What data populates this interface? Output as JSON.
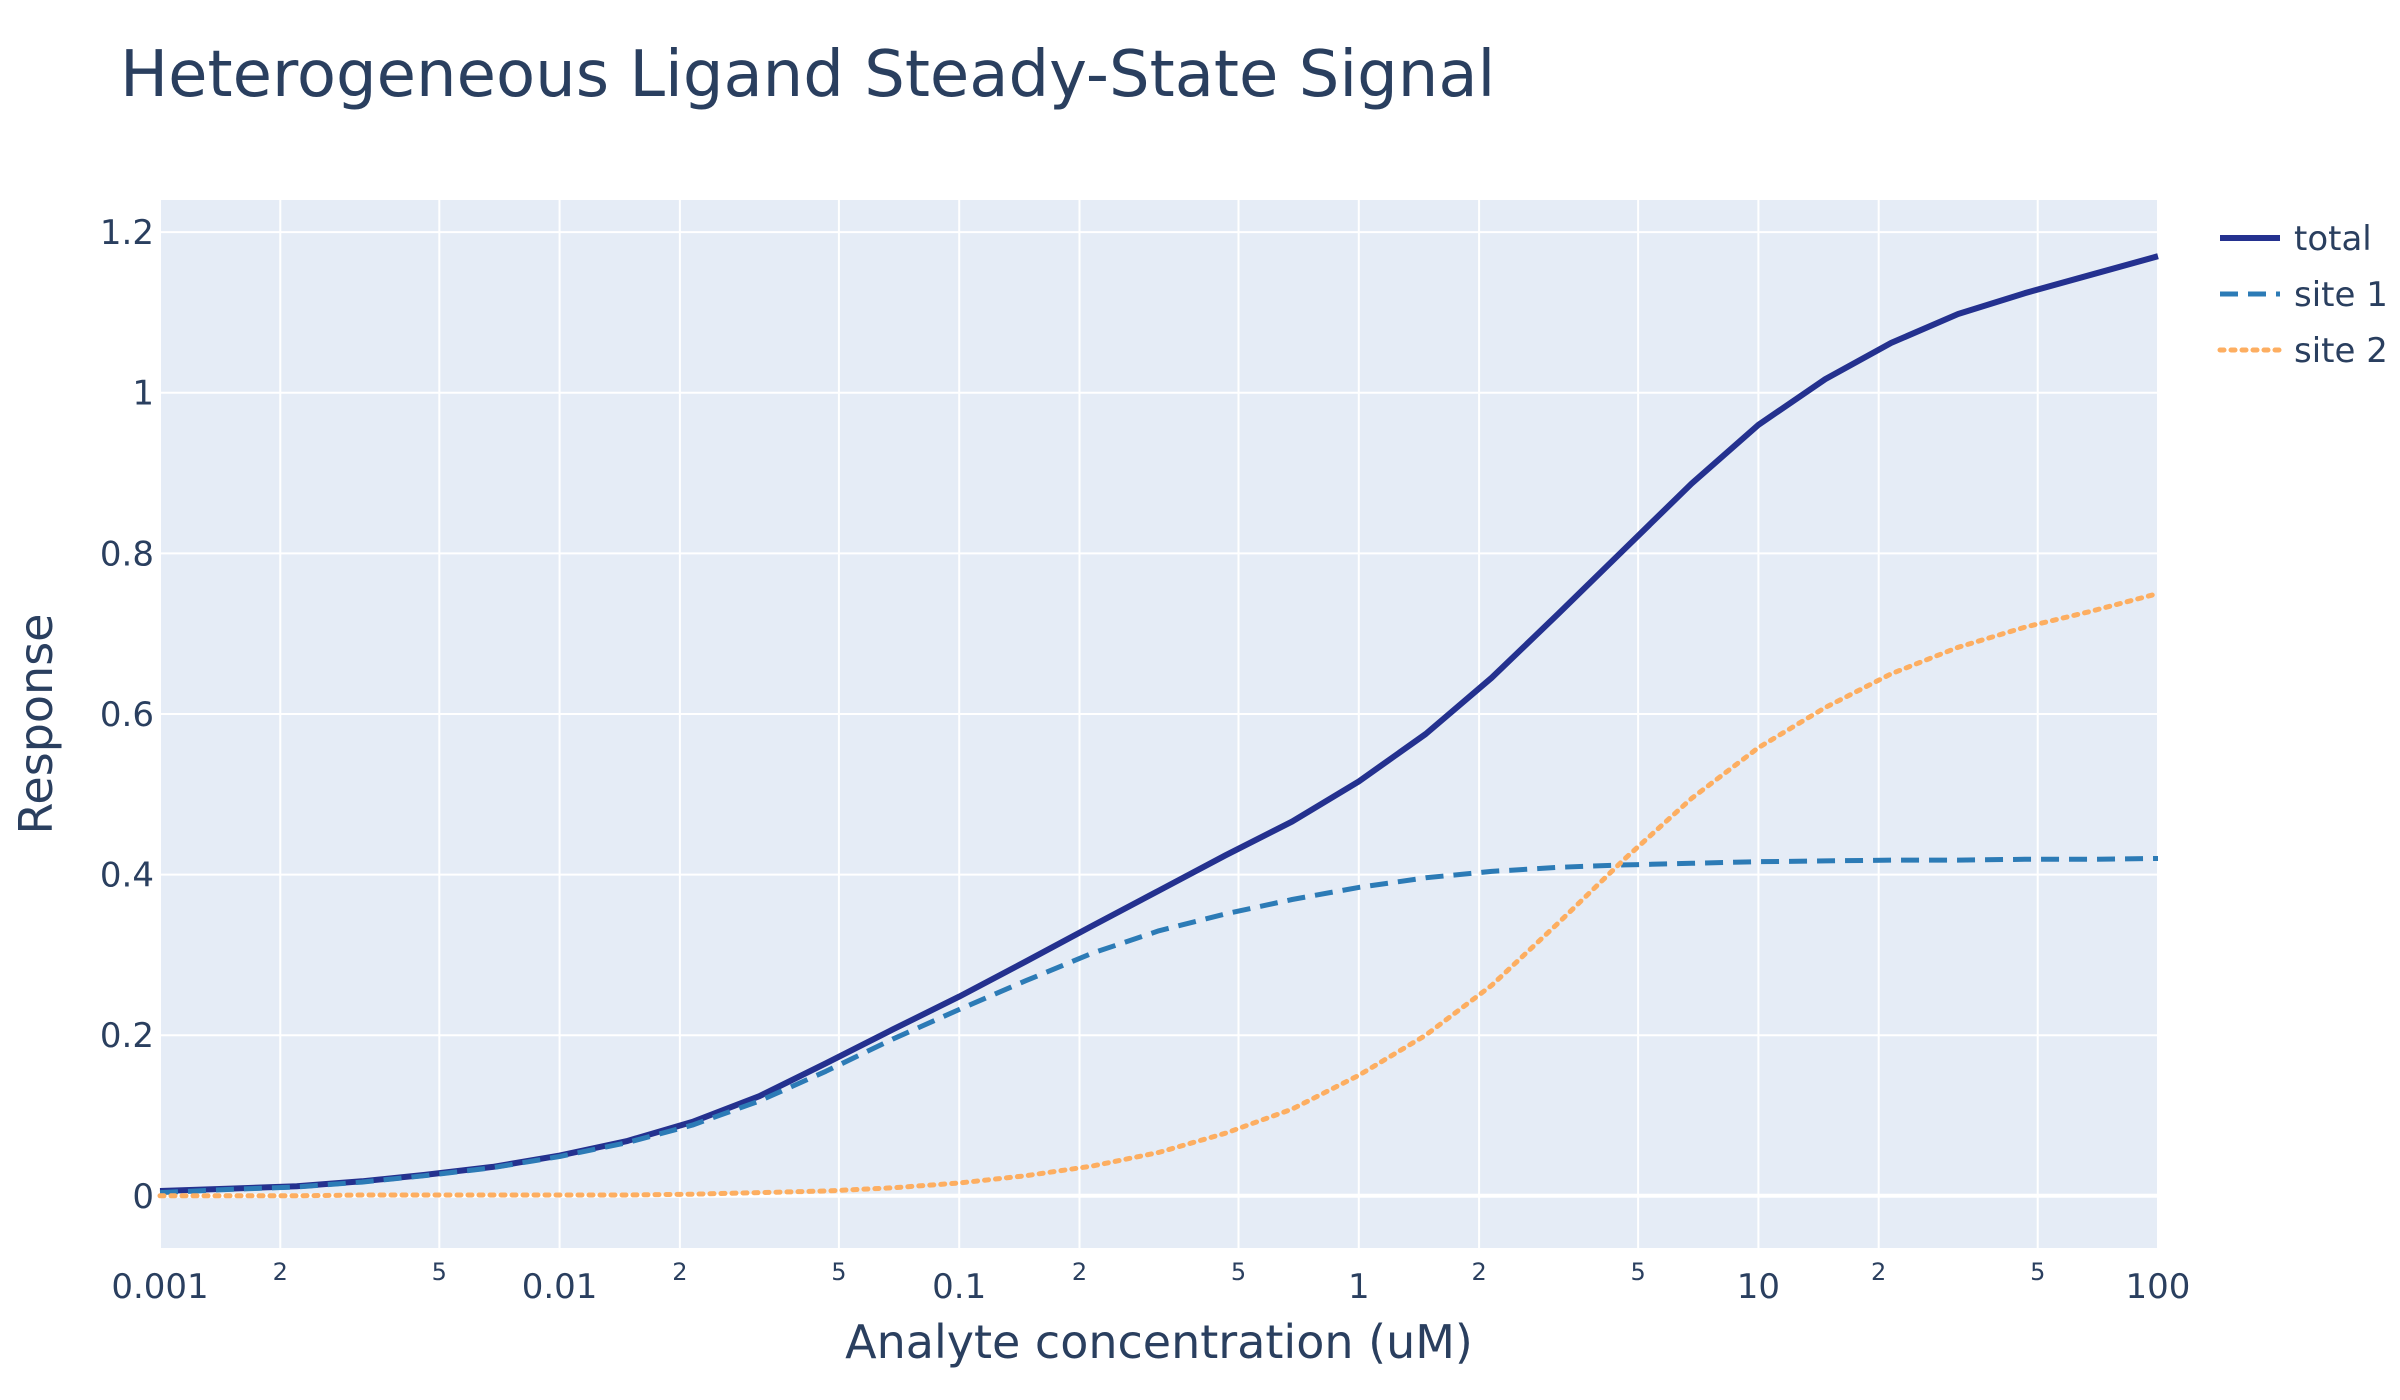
{
  "chart_data": {
    "type": "line",
    "title": "Heterogeneous Ligand Steady-State Signal",
    "xlabel": "Analyte concentration (uM)",
    "ylabel": "Response",
    "xscale": "log",
    "xlim": [
      0.001,
      100
    ],
    "ylim": [
      -0.065,
      1.24
    ],
    "grid": true,
    "legend_position": "top-right",
    "x_major_ticks": [
      {
        "value": 0.001,
        "label": "0.001"
      },
      {
        "value": 0.01,
        "label": "0.01"
      },
      {
        "value": 0.1,
        "label": "0.1"
      },
      {
        "value": 1,
        "label": "1"
      },
      {
        "value": 10,
        "label": "10"
      },
      {
        "value": 100,
        "label": "100"
      }
    ],
    "x_minor_ticks": [
      {
        "value": 0.002,
        "label": "2"
      },
      {
        "value": 0.005,
        "label": "5"
      },
      {
        "value": 0.02,
        "label": "2"
      },
      {
        "value": 0.05,
        "label": "5"
      },
      {
        "value": 0.2,
        "label": "2"
      },
      {
        "value": 0.5,
        "label": "5"
      },
      {
        "value": 2,
        "label": "2"
      },
      {
        "value": 5,
        "label": "5"
      },
      {
        "value": 20,
        "label": "2"
      },
      {
        "value": 50,
        "label": "5"
      }
    ],
    "y_ticks": [
      {
        "value": 0,
        "label": "0"
      },
      {
        "value": 0.2,
        "label": "0.2"
      },
      {
        "value": 0.4,
        "label": "0.4"
      },
      {
        "value": 0.6,
        "label": "0.6"
      },
      {
        "value": 0.8,
        "label": "0.8"
      },
      {
        "value": 1,
        "label": "1"
      },
      {
        "value": 1.2,
        "label": "1.2"
      }
    ],
    "x": [
      0.001,
      0.0015,
      0.0022,
      0.0032,
      0.0046,
      0.0068,
      0.01,
      0.0147,
      0.0215,
      0.0316,
      0.0464,
      0.0681,
      0.1,
      0.147,
      0.215,
      0.316,
      0.464,
      0.681,
      1,
      1.47,
      2.15,
      3.16,
      4.64,
      6.81,
      10,
      14.7,
      21.5,
      31.6,
      46.4,
      68.1,
      100
    ],
    "series": [
      {
        "name": "total",
        "color": "#24318f",
        "dash": "solid",
        "values": [
          0.006,
          0.009,
          0.012,
          0.018,
          0.026,
          0.036,
          0.05,
          0.068,
          0.092,
          0.124,
          0.165,
          0.207,
          0.248,
          0.292,
          0.336,
          0.38,
          0.424,
          0.466,
          0.516,
          0.575,
          0.645,
          0.725,
          0.806,
          0.887,
          0.96,
          1.017,
          1.062,
          1.098,
          1.124,
          1.147,
          1.17
        ]
      },
      {
        "name": "site 1",
        "color": "#2c7bb6",
        "dash": "dash",
        "values": [
          0.004,
          0.008,
          0.011,
          0.017,
          0.025,
          0.035,
          0.049,
          0.066,
          0.088,
          0.118,
          0.155,
          0.195,
          0.232,
          0.268,
          0.302,
          0.33,
          0.351,
          0.369,
          0.384,
          0.396,
          0.404,
          0.409,
          0.412,
          0.414,
          0.416,
          0.417,
          0.418,
          0.418,
          0.419,
          0.419,
          0.42
        ]
      },
      {
        "name": "site 2",
        "color": "#fdae61",
        "dash": "dot",
        "values": [
          0.0,
          0.0,
          0.0,
          0.001,
          0.001,
          0.001,
          0.001,
          0.001,
          0.002,
          0.004,
          0.006,
          0.01,
          0.016,
          0.025,
          0.037,
          0.054,
          0.078,
          0.108,
          0.15,
          0.2,
          0.262,
          0.34,
          0.42,
          0.495,
          0.558,
          0.608,
          0.65,
          0.683,
          0.708,
          0.728,
          0.75
        ]
      }
    ]
  }
}
